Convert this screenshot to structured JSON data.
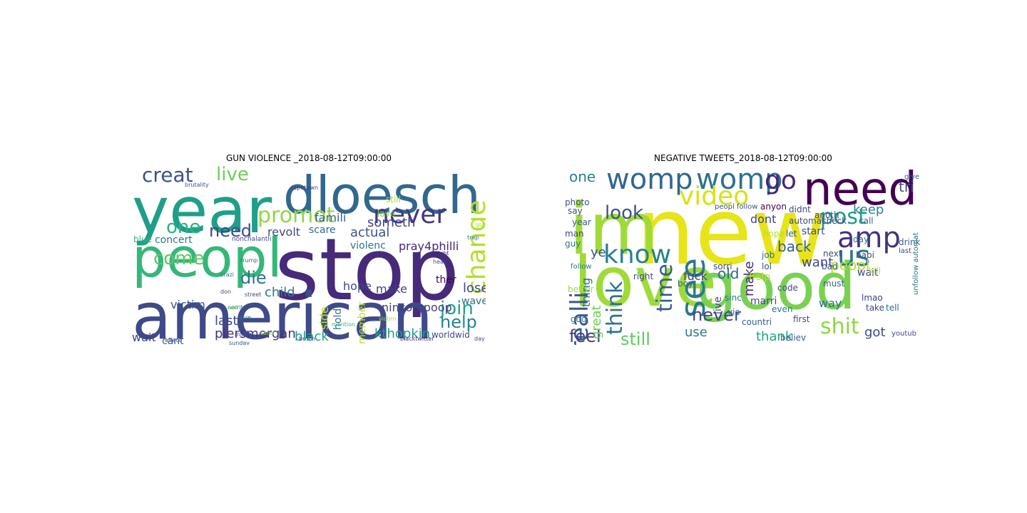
{
  "figure": {
    "panels": [
      {
        "title": "GUN VIOLENCE _2018-08-12T09:00:00",
        "words": [
          {
            "text": "stop",
            "color": "#472a7a"
          },
          {
            "text": "american",
            "color": "#3e4a89"
          },
          {
            "text": "year",
            "color": "#1f9e89"
          },
          {
            "text": "dloesch",
            "color": "#31688e"
          },
          {
            "text": "peopl",
            "color": "#35b779"
          },
          {
            "text": "never",
            "color": "#453781"
          },
          {
            "text": "promot",
            "color": "#90d743"
          },
          {
            "text": "creat",
            "color": "#3b528b"
          },
          {
            "text": "live",
            "color": "#6ece58"
          },
          {
            "text": "change",
            "color": "#b5de2b"
          },
          {
            "text": "one",
            "color": "#2db27d"
          },
          {
            "text": "need",
            "color": "#3e4989"
          },
          {
            "text": "come",
            "color": "#5ec962"
          },
          {
            "text": "die",
            "color": "#2c728e"
          },
          {
            "text": "help",
            "color": "#25848e"
          },
          {
            "text": "join",
            "color": "#20a486"
          },
          {
            "text": "actual",
            "color": "#3b528b"
          },
          {
            "text": "someth",
            "color": "#414487"
          },
          {
            "text": "famili",
            "color": "#355f8d"
          },
          {
            "text": "child",
            "color": "#2a788e"
          },
          {
            "text": "hope",
            "color": "#3f4788"
          },
          {
            "text": "make",
            "color": "#433e85"
          },
          {
            "text": "revolt",
            "color": "#3e4a89"
          },
          {
            "text": "scare",
            "color": "#31688e"
          },
          {
            "text": "violenc",
            "color": "#2a788e"
          },
          {
            "text": "pray4philli",
            "color": "#482878"
          },
          {
            "text": "kthopkin",
            "color": "#1fa188"
          },
          {
            "text": "piersmorgan",
            "color": "#46327e"
          },
          {
            "text": "black",
            "color": "#1f9e89"
          },
          {
            "text": "last",
            "color": "#3f4788"
          },
          {
            "text": "victim",
            "color": "#3b528b"
          },
          {
            "text": "wait",
            "color": "#414487"
          },
          {
            "text": "cant",
            "color": "#355f8d"
          },
          {
            "text": "concert",
            "color": "#2a788e"
          },
          {
            "text": "blue",
            "color": "#35b779"
          },
          {
            "text": "lose",
            "color": "#3e4a89"
          },
          {
            "text": "wave",
            "color": "#31688e"
          },
          {
            "text": "ther",
            "color": "#440154"
          },
          {
            "text": "love",
            "color": "#7ad151"
          },
          {
            "text": "ap",
            "color": "#472d7b"
          },
          {
            "text": "still",
            "color": "#a0da39"
          },
          {
            "text": "worldwid",
            "color": "#3e4989"
          },
          {
            "text": "nincompoop",
            "color": "#433e85"
          },
          {
            "text": "hold",
            "color": "#2c728e"
          },
          {
            "text": "side",
            "color": "#bddf26"
          },
          {
            "text": "member",
            "color": "#b8de29"
          },
          {
            "text": "nonchalantli",
            "color": "#3e4a89"
          },
          {
            "text": "brutality",
            "color": "#3b528b"
          },
          {
            "text": "capetown",
            "color": "#443a83"
          },
          {
            "text": "crazi",
            "color": "#2c728e"
          },
          {
            "text": "trump",
            "color": "#31688e"
          },
          {
            "text": "don",
            "color": "#3e4a89"
          },
          {
            "text": "street",
            "color": "#414487"
          },
          {
            "text": "norrit",
            "color": "#2a788e"
          },
          {
            "text": "sad",
            "color": "#6ece58"
          },
          {
            "text": "victim",
            "color": "#b5de2b"
          },
          {
            "text": "bruch",
            "color": "#3e4a89"
          },
          {
            "text": "give",
            "color": "#2a788e"
          },
          {
            "text": "matter",
            "color": "#3b528b"
          },
          {
            "text": "sunday",
            "color": "#3e4989"
          },
          {
            "text": "affect",
            "color": "#414487"
          },
          {
            "text": "mention",
            "color": "#35b779"
          },
          {
            "text": "blacktwitter",
            "color": "#482878"
          },
          {
            "text": "day",
            "color": "#3e4a89"
          },
          {
            "text": "night",
            "color": "#472a7a"
          },
          {
            "text": "trap",
            "color": "#2c728e"
          },
          {
            "text": "hear",
            "color": "#3e4a89"
          },
          {
            "text": "safer",
            "color": "#90d743"
          },
          {
            "text": "gun",
            "color": "#a0da39"
          }
        ]
      },
      {
        "title": "NEGATIVE TWEETS_2018-08-12T09:00:00",
        "words": [
          {
            "text": "new",
            "color": "#e7e419"
          },
          {
            "text": "im",
            "color": "#a0da39"
          },
          {
            "text": "love",
            "color": "#a0da39"
          },
          {
            "text": "good",
            "color": "#7ad151"
          },
          {
            "text": "need",
            "color": "#440154"
          },
          {
            "text": "womp",
            "color": "#31688e"
          },
          {
            "text": "womp",
            "color": "#2c728e"
          },
          {
            "text": "video",
            "color": "#d8e219"
          },
          {
            "text": "know",
            "color": "#26828e"
          },
          {
            "text": "go",
            "color": "#482475"
          },
          {
            "text": "amp",
            "color": "#46327e"
          },
          {
            "text": "us",
            "color": "#2a788e"
          },
          {
            "text": "see",
            "color": "#2a788e"
          },
          {
            "text": "post",
            "color": "#1f9e89"
          },
          {
            "text": "shit",
            "color": "#8fd744"
          },
          {
            "text": "look",
            "color": "#3b528b"
          },
          {
            "text": "realli",
            "color": "#38598c"
          },
          {
            "text": "think",
            "color": "#2c728e"
          },
          {
            "text": "time",
            "color": "#365c8d"
          },
          {
            "text": "feel",
            "color": "#433e85"
          },
          {
            "text": "never",
            "color": "#3e4a89"
          },
          {
            "text": "still",
            "color": "#5ec962"
          },
          {
            "text": "one",
            "color": "#26828e"
          },
          {
            "text": "back",
            "color": "#35608d"
          },
          {
            "text": "old",
            "color": "#31688e"
          },
          {
            "text": "peopl",
            "color": "#b5de2b"
          },
          {
            "text": "tri",
            "color": "#3b528b"
          },
          {
            "text": "keep",
            "color": "#25848e"
          },
          {
            "text": "want",
            "color": "#404688"
          },
          {
            "text": "make",
            "color": "#482878"
          },
          {
            "text": "dont",
            "color": "#414487"
          },
          {
            "text": "fuck",
            "color": "#443983"
          },
          {
            "text": "help",
            "color": "#bddf26"
          },
          {
            "text": "thank",
            "color": "#20a486"
          },
          {
            "text": "use",
            "color": "#2a788e"
          },
          {
            "text": "way",
            "color": "#2c728e"
          },
          {
            "text": "got",
            "color": "#3e4989"
          },
          {
            "text": "great",
            "color": "#6ece58"
          },
          {
            "text": "ye",
            "color": "#3b528b"
          },
          {
            "text": "thing",
            "color": "#2c728e"
          },
          {
            "text": "automat",
            "color": "#3e4a89"
          },
          {
            "text": "check",
            "color": "#414487"
          },
          {
            "text": "call",
            "color": "#31688e"
          },
          {
            "text": "start",
            "color": "#3e4a89"
          },
          {
            "text": "let",
            "color": "#355f8d"
          },
          {
            "text": "sinc",
            "color": "#2a788e"
          },
          {
            "text": "wait",
            "color": "#3e4a89"
          },
          {
            "text": "babi",
            "color": "#414487"
          },
          {
            "text": "job",
            "color": "#2c728e"
          },
          {
            "text": "lol",
            "color": "#3b528b"
          },
          {
            "text": "hope",
            "color": "#b5de2b"
          },
          {
            "text": "anyon",
            "color": "#440154"
          },
          {
            "text": "live",
            "color": "#3e4a89"
          },
          {
            "text": "even",
            "color": "#2a788e"
          },
          {
            "text": "via",
            "color": "#31688e"
          },
          {
            "text": "marri",
            "color": "#3e4989"
          },
          {
            "text": "believ",
            "color": "#355f8d"
          },
          {
            "text": "lmao",
            "color": "#414487"
          },
          {
            "text": "take",
            "color": "#3e4a89"
          },
          {
            "text": "tell",
            "color": "#2c728e"
          },
          {
            "text": "kill",
            "color": "#b5de2b"
          },
          {
            "text": "give",
            "color": "#31688e"
          },
          {
            "text": "photo",
            "color": "#3b528b"
          },
          {
            "text": "man",
            "color": "#414487"
          },
          {
            "text": "guy",
            "color": "#2a788e"
          },
          {
            "text": "say",
            "color": "#3e4a89"
          },
          {
            "text": "year",
            "color": "#35608d"
          },
          {
            "text": "right",
            "color": "#3e4989"
          },
          {
            "text": "boy",
            "color": "#31688e"
          },
          {
            "text": "better",
            "color": "#a0da39"
          },
          {
            "text": "sorri",
            "color": "#3e4a89"
          },
          {
            "text": "day",
            "color": "#2c728e"
          },
          {
            "text": "next",
            "color": "#414487"
          },
          {
            "text": "bad",
            "color": "#3b528b"
          },
          {
            "text": "god",
            "color": "#2a788e"
          },
          {
            "text": "first",
            "color": "#3e4a89"
          },
          {
            "text": "must",
            "color": "#31688e"
          },
          {
            "text": "didnt",
            "color": "#3e4989"
          },
          {
            "text": "anoth",
            "color": "#414487"
          },
          {
            "text": "countri",
            "color": "#35608d"
          },
          {
            "text": "youtub",
            "color": "#3e4a89"
          },
          {
            "text": "unfollow automat",
            "color": "#2c728e"
          },
          {
            "text": "peopl follow",
            "color": "#3b528b"
          },
          {
            "text": "code",
            "color": "#414487"
          },
          {
            "text": "follow",
            "color": "#2a788e"
          },
          {
            "text": "drink",
            "color": "#31688e"
          },
          {
            "text": "last",
            "color": "#3e4a89"
          }
        ]
      }
    ]
  }
}
